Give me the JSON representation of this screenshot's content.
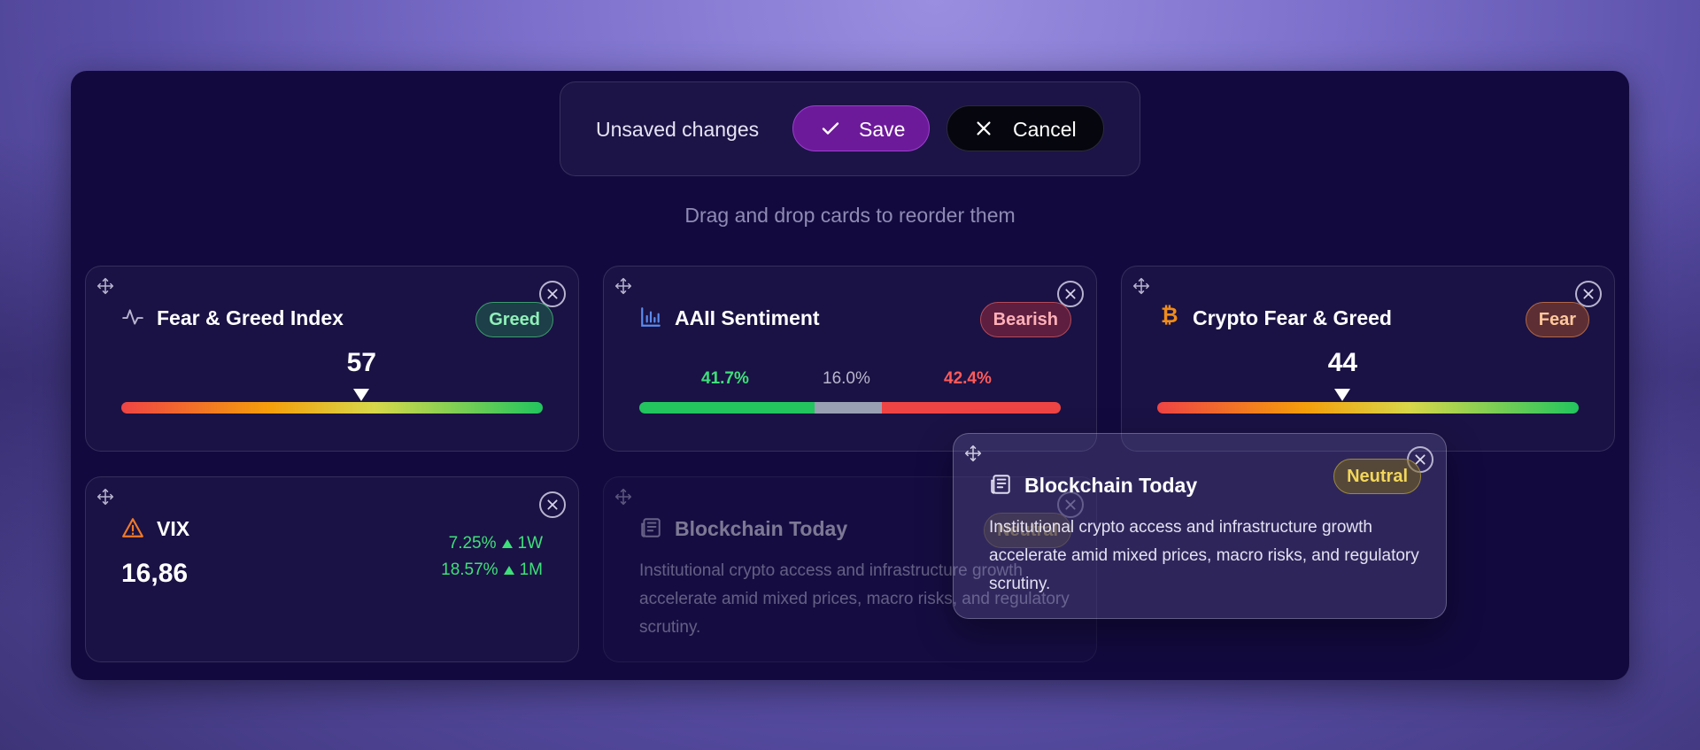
{
  "toolbar": {
    "unsaved_label": "Unsaved changes",
    "save_label": "Save",
    "cancel_label": "Cancel"
  },
  "hint": "Drag and drop cards to reorder them",
  "cards": {
    "fear_greed": {
      "title": "Fear & Greed Index",
      "badge": "Greed",
      "value": "57",
      "level": 57
    },
    "aaii": {
      "title": "AAII Sentiment",
      "badge": "Bearish",
      "bullish": "41.7%",
      "neutral": "16.0%",
      "bearish": "42.4%",
      "bullish_pct": 41.7,
      "neutral_pct": 16.0,
      "bearish_pct": 42.4
    },
    "crypto": {
      "title": "Crypto Fear & Greed",
      "badge": "Fear",
      "value": "44",
      "level": 44
    },
    "vix": {
      "title": "VIX",
      "value": "16,86",
      "change_1w": "7.25%",
      "period_1w": "1W",
      "change_1m": "18.57%",
      "period_1m": "1M"
    },
    "news_ghost": {
      "title": "Blockchain Today",
      "badge": "Neutral",
      "text": "Institutional crypto access and infrastructure growth accelerate amid mixed prices, macro risks, and regulatory scrutiny."
    },
    "news_dragging": {
      "title": "Blockchain Today",
      "badge": "Neutral",
      "text": "Institutional crypto access and infrastructure growth accelerate amid mixed prices, macro risks, and regulatory scrutiny."
    }
  },
  "colors": {
    "panel": "#120a3e",
    "save": "#6d1a9a",
    "positive": "#22c55e",
    "negative": "#ef4444"
  },
  "icons": {
    "move": "move-icon",
    "close": "close-icon",
    "pulse": "activity-icon",
    "chart": "bar-chart-icon",
    "bitcoin": "bitcoin-icon",
    "warning": "warning-icon",
    "news": "newspaper-icon"
  }
}
